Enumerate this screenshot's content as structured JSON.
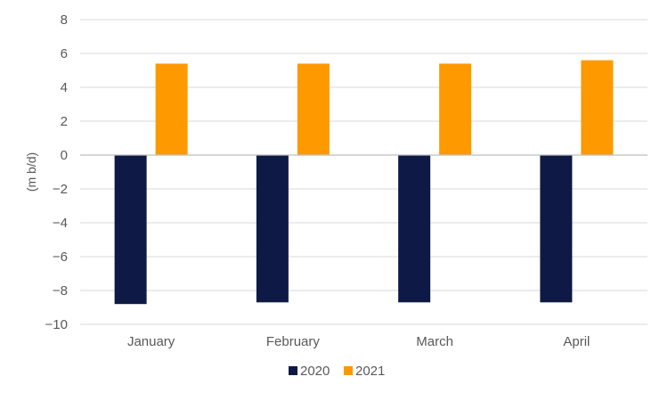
{
  "chart_data": {
    "type": "bar",
    "title": "",
    "xlabel": "",
    "ylabel": "(m b/d)",
    "ylim": [
      -10,
      8
    ],
    "yticks": [
      8,
      6,
      4,
      2,
      0,
      -2,
      -4,
      -6,
      -8,
      -10
    ],
    "categories": [
      "January",
      "February",
      "March",
      "April"
    ],
    "series": [
      {
        "name": "2020",
        "color": "#0e1a45",
        "values": [
          -8.8,
          -8.7,
          -8.7,
          -8.7
        ]
      },
      {
        "name": "2021",
        "color": "#ff9900",
        "values": [
          5.4,
          5.4,
          5.4,
          5.6
        ]
      }
    ],
    "grid": true,
    "legend_position": "bottom"
  }
}
